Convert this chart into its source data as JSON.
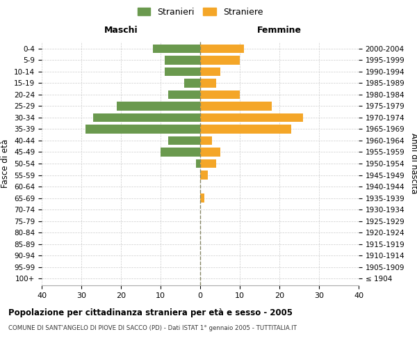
{
  "age_groups": [
    "100+",
    "95-99",
    "90-94",
    "85-89",
    "80-84",
    "75-79",
    "70-74",
    "65-69",
    "60-64",
    "55-59",
    "50-54",
    "45-49",
    "40-44",
    "35-39",
    "30-34",
    "25-29",
    "20-24",
    "15-19",
    "10-14",
    "5-9",
    "0-4"
  ],
  "birth_years": [
    "≤ 1904",
    "1905-1909",
    "1910-1914",
    "1915-1919",
    "1920-1924",
    "1925-1929",
    "1930-1934",
    "1935-1939",
    "1940-1944",
    "1945-1949",
    "1950-1954",
    "1955-1959",
    "1960-1964",
    "1965-1969",
    "1970-1974",
    "1975-1979",
    "1980-1984",
    "1985-1989",
    "1990-1994",
    "1995-1999",
    "2000-2004"
  ],
  "males": [
    0,
    0,
    0,
    0,
    0,
    0,
    0,
    0,
    0,
    0,
    1,
    10,
    8,
    29,
    27,
    21,
    8,
    4,
    9,
    9,
    12
  ],
  "females": [
    0,
    0,
    0,
    0,
    0,
    0,
    0,
    1,
    0,
    2,
    4,
    5,
    3,
    23,
    26,
    18,
    10,
    4,
    5,
    10,
    11
  ],
  "male_color": "#6a994e",
  "female_color": "#f4a628",
  "title": "Popolazione per cittadinanza straniera per età e sesso - 2005",
  "subtitle": "COMUNE DI SANT'ANGELO DI PIOVE DI SACCO (PD) - Dati ISTAT 1° gennaio 2005 - TUTTITALIA.IT",
  "xlabel_maschi": "Maschi",
  "xlabel_femmine": "Femmine",
  "ylabel_left": "Fasce di età",
  "ylabel_right": "Anni di nascita",
  "xlim": 40,
  "background_color": "#ffffff",
  "grid_color": "#cccccc",
  "legend_stranieri": "Stranieri",
  "legend_straniere": "Straniere"
}
